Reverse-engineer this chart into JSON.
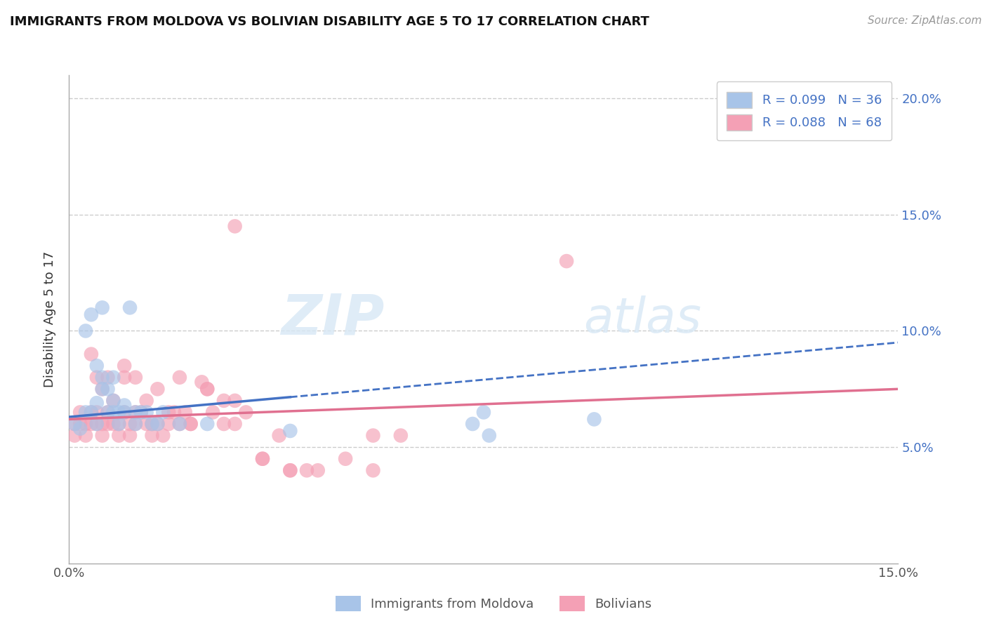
{
  "title": "IMMIGRANTS FROM MOLDOVA VS BOLIVIAN DISABILITY AGE 5 TO 17 CORRELATION CHART",
  "source_text": "Source: ZipAtlas.com",
  "ylabel": "Disability Age 5 to 17",
  "xlim": [
    0.0,
    0.15
  ],
  "ylim": [
    0.0,
    0.21
  ],
  "xticks": [
    0.0,
    0.15
  ],
  "xtick_labels": [
    "0.0%",
    "15.0%"
  ],
  "yticks": [
    0.05,
    0.1,
    0.15,
    0.2
  ],
  "ytick_labels": [
    "5.0%",
    "10.0%",
    "15.0%",
    "20.0%"
  ],
  "legend_r1": "R = 0.099",
  "legend_n1": "N = 36",
  "legend_r2": "R = 0.088",
  "legend_n2": "N = 68",
  "series1_color": "#a8c4e8",
  "series2_color": "#f4a0b5",
  "trendline1_color": "#4472c4",
  "trendline2_color": "#e07090",
  "watermark_zip": "ZIP",
  "watermark_atlas": "atlas",
  "series1_x": [
    0.001,
    0.002,
    0.003,
    0.003,
    0.004,
    0.004,
    0.005,
    0.005,
    0.005,
    0.006,
    0.006,
    0.006,
    0.007,
    0.007,
    0.008,
    0.008,
    0.008,
    0.009,
    0.009,
    0.01,
    0.01,
    0.011,
    0.012,
    0.012,
    0.013,
    0.014,
    0.015,
    0.016,
    0.017,
    0.02,
    0.025,
    0.04,
    0.075,
    0.073,
    0.076,
    0.095
  ],
  "series1_y": [
    0.06,
    0.058,
    0.065,
    0.1,
    0.065,
    0.107,
    0.06,
    0.069,
    0.085,
    0.075,
    0.08,
    0.11,
    0.065,
    0.075,
    0.065,
    0.07,
    0.08,
    0.06,
    0.065,
    0.068,
    0.065,
    0.11,
    0.06,
    0.065,
    0.065,
    0.065,
    0.06,
    0.06,
    0.065,
    0.06,
    0.06,
    0.057,
    0.065,
    0.06,
    0.055,
    0.062
  ],
  "series2_x": [
    0.001,
    0.001,
    0.002,
    0.002,
    0.003,
    0.003,
    0.004,
    0.004,
    0.004,
    0.005,
    0.005,
    0.005,
    0.006,
    0.006,
    0.006,
    0.007,
    0.007,
    0.007,
    0.008,
    0.008,
    0.009,
    0.009,
    0.01,
    0.01,
    0.01,
    0.011,
    0.011,
    0.012,
    0.012,
    0.013,
    0.014,
    0.014,
    0.015,
    0.015,
    0.016,
    0.017,
    0.018,
    0.019,
    0.02,
    0.021,
    0.022,
    0.025,
    0.026,
    0.028,
    0.03,
    0.032,
    0.035,
    0.038,
    0.04,
    0.043,
    0.012,
    0.016,
    0.02,
    0.024,
    0.028,
    0.03,
    0.035,
    0.04,
    0.045,
    0.05,
    0.055,
    0.018,
    0.022,
    0.025,
    0.03,
    0.055,
    0.06,
    0.09
  ],
  "series2_y": [
    0.06,
    0.055,
    0.06,
    0.065,
    0.055,
    0.06,
    0.06,
    0.065,
    0.09,
    0.06,
    0.065,
    0.08,
    0.055,
    0.06,
    0.075,
    0.06,
    0.065,
    0.08,
    0.06,
    0.07,
    0.055,
    0.06,
    0.065,
    0.08,
    0.085,
    0.055,
    0.06,
    0.06,
    0.065,
    0.065,
    0.06,
    0.07,
    0.055,
    0.06,
    0.06,
    0.055,
    0.06,
    0.065,
    0.06,
    0.065,
    0.06,
    0.075,
    0.065,
    0.06,
    0.06,
    0.065,
    0.045,
    0.055,
    0.04,
    0.04,
    0.08,
    0.075,
    0.08,
    0.078,
    0.07,
    0.07,
    0.045,
    0.04,
    0.04,
    0.045,
    0.04,
    0.065,
    0.06,
    0.075,
    0.145,
    0.055,
    0.055,
    0.13
  ],
  "background_color": "#ffffff",
  "grid_color": "#cccccc"
}
